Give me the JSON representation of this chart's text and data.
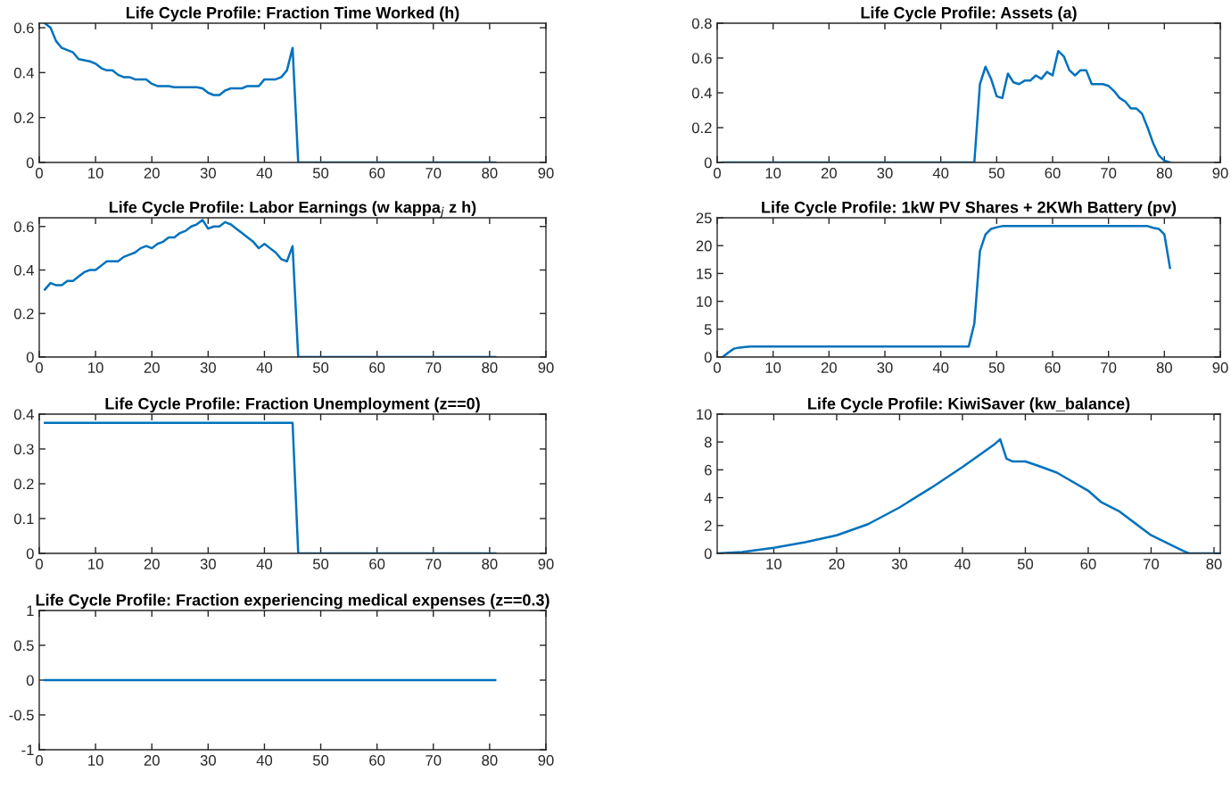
{
  "chart_data": [
    {
      "type": "line",
      "title": "Life Cycle Profile: Fraction Time Worked (h)",
      "x": [
        1,
        2,
        3,
        4,
        5,
        6,
        7,
        8,
        9,
        10,
        11,
        12,
        13,
        14,
        15,
        16,
        17,
        18,
        19,
        20,
        21,
        22,
        23,
        24,
        25,
        26,
        27,
        28,
        29,
        30,
        31,
        32,
        33,
        34,
        35,
        36,
        37,
        38,
        39,
        40,
        41,
        42,
        43,
        44,
        45,
        46,
        81
      ],
      "series": [
        {
          "color": "#0072bd",
          "values": [
            0.62,
            0.6,
            0.54,
            0.51,
            0.5,
            0.49,
            0.46,
            0.455,
            0.45,
            0.44,
            0.42,
            0.41,
            0.41,
            0.39,
            0.38,
            0.38,
            0.37,
            0.37,
            0.37,
            0.35,
            0.34,
            0.34,
            0.34,
            0.335,
            0.335,
            0.335,
            0.335,
            0.335,
            0.33,
            0.31,
            0.3,
            0.3,
            0.32,
            0.33,
            0.33,
            0.33,
            0.34,
            0.34,
            0.34,
            0.37,
            0.37,
            0.37,
            0.38,
            0.41,
            0.51,
            0,
            0
          ]
        }
      ],
      "xlim": [
        0,
        90
      ],
      "xticks": [
        0,
        10,
        20,
        30,
        40,
        50,
        60,
        70,
        80,
        90
      ],
      "ylim": [
        0,
        0.62
      ],
      "yticks": [
        0,
        0.2,
        0.4,
        0.6
      ],
      "grid": false
    },
    {
      "type": "line",
      "title": "Life Cycle Profile: Assets (a)",
      "x": [
        1,
        46,
        47,
        48,
        49,
        50,
        51,
        52,
        53,
        54,
        55,
        56,
        57,
        58,
        59,
        60,
        61,
        62,
        63,
        64,
        65,
        66,
        67,
        68,
        69,
        70,
        71,
        72,
        73,
        74,
        75,
        76,
        77,
        78,
        79,
        80,
        81
      ],
      "series": [
        {
          "color": "#0072bd",
          "values": [
            0,
            0,
            0.45,
            0.55,
            0.48,
            0.38,
            0.37,
            0.51,
            0.46,
            0.45,
            0.47,
            0.47,
            0.5,
            0.48,
            0.52,
            0.5,
            0.64,
            0.61,
            0.53,
            0.5,
            0.53,
            0.53,
            0.45,
            0.45,
            0.45,
            0.44,
            0.41,
            0.37,
            0.35,
            0.31,
            0.31,
            0.28,
            0.2,
            0.11,
            0.04,
            0.01,
            0
          ]
        }
      ],
      "xlim": [
        0,
        90
      ],
      "xticks": [
        0,
        10,
        20,
        30,
        40,
        50,
        60,
        70,
        80,
        90
      ],
      "ylim": [
        0,
        0.8
      ],
      "yticks": [
        0,
        0.2,
        0.4,
        0.6,
        0.8
      ],
      "grid": false
    },
    {
      "type": "line",
      "title": "Life Cycle Profile: Labor Earnings (w kappa$_{j}$ z h)",
      "x": [
        1,
        2,
        3,
        4,
        5,
        6,
        7,
        8,
        9,
        10,
        11,
        12,
        13,
        14,
        15,
        16,
        17,
        18,
        19,
        20,
        21,
        22,
        23,
        24,
        25,
        26,
        27,
        28,
        29,
        30,
        31,
        32,
        33,
        34,
        35,
        36,
        37,
        38,
        39,
        40,
        41,
        42,
        43,
        44,
        45,
        46,
        81
      ],
      "series": [
        {
          "color": "#0072bd",
          "values": [
            0.31,
            0.34,
            0.33,
            0.33,
            0.35,
            0.35,
            0.37,
            0.39,
            0.4,
            0.4,
            0.42,
            0.44,
            0.44,
            0.44,
            0.46,
            0.47,
            0.48,
            0.5,
            0.51,
            0.5,
            0.52,
            0.53,
            0.55,
            0.55,
            0.57,
            0.58,
            0.6,
            0.61,
            0.63,
            0.59,
            0.6,
            0.6,
            0.62,
            0.61,
            0.59,
            0.57,
            0.55,
            0.53,
            0.5,
            0.52,
            0.5,
            0.48,
            0.45,
            0.44,
            0.51,
            0,
            0
          ]
        }
      ],
      "xlim": [
        0,
        90
      ],
      "xticks": [
        0,
        10,
        20,
        30,
        40,
        50,
        60,
        70,
        80,
        90
      ],
      "ylim": [
        0,
        0.64
      ],
      "yticks": [
        0,
        0.2,
        0.4,
        0.6
      ],
      "grid": false
    },
    {
      "type": "line",
      "title": "Life Cycle Profile: 1kW PV Shares + 2KWh Battery (pv)",
      "x": [
        1,
        2,
        3,
        4,
        5,
        6,
        45,
        46,
        47,
        48,
        49,
        50,
        51,
        77,
        78,
        79,
        80,
        81
      ],
      "series": [
        {
          "color": "#0072bd",
          "values": [
            0,
            0.8,
            1.5,
            1.7,
            1.8,
            1.9,
            1.9,
            6,
            19,
            22,
            23,
            23.3,
            23.5,
            23.5,
            23.2,
            23,
            22,
            16
          ]
        }
      ],
      "xlim": [
        0,
        90
      ],
      "xticks": [
        0,
        10,
        20,
        30,
        40,
        50,
        60,
        70,
        80,
        90
      ],
      "ylim": [
        0,
        25
      ],
      "yticks": [
        0,
        5,
        10,
        15,
        20,
        25
      ],
      "grid": false
    },
    {
      "type": "line",
      "title": "Life Cycle Profile: Fraction Unemployment (z==0)",
      "x": [
        1,
        45,
        46,
        81
      ],
      "series": [
        {
          "color": "#0072bd",
          "values": [
            0.375,
            0.375,
            0,
            0
          ]
        }
      ],
      "xlim": [
        0,
        90
      ],
      "xticks": [
        0,
        10,
        20,
        30,
        40,
        50,
        60,
        70,
        80,
        90
      ],
      "ylim": [
        0,
        0.4
      ],
      "yticks": [
        0,
        0.1,
        0.2,
        0.3,
        0.4
      ],
      "grid": false
    },
    {
      "type": "line",
      "title": "Life Cycle Profile: KiwiSaver (kw_balance)",
      "x": [
        1,
        5,
        10,
        15,
        20,
        25,
        30,
        35,
        40,
        45,
        46,
        47,
        48,
        50,
        52,
        55,
        60,
        62,
        65,
        70,
        75,
        76,
        81
      ],
      "series": [
        {
          "color": "#0072bd",
          "values": [
            0,
            0.1,
            0.4,
            0.8,
            1.3,
            2.1,
            3.3,
            4.7,
            6.2,
            7.8,
            8.2,
            6.8,
            6.6,
            6.6,
            6.3,
            5.8,
            4.5,
            3.7,
            3.0,
            1.3,
            0.2,
            0,
            0
          ]
        }
      ],
      "xlim": [
        1,
        81
      ],
      "xticks": [
        10,
        20,
        30,
        40,
        50,
        60,
        70,
        80
      ],
      "ylim": [
        0,
        10
      ],
      "yticks": [
        0,
        2,
        4,
        6,
        8,
        10
      ],
      "grid": false
    },
    {
      "type": "line",
      "title": "Life Cycle Profile: Fraction experiencing medical expenses (z==0.3)",
      "x": [
        1,
        81
      ],
      "series": [
        {
          "color": "#0072bd",
          "values": [
            0,
            0
          ]
        }
      ],
      "xlim": [
        0,
        90
      ],
      "xticks": [
        0,
        10,
        20,
        30,
        40,
        50,
        60,
        70,
        80,
        90
      ],
      "ylim": [
        -1,
        1
      ],
      "yticks": [
        -1,
        -0.5,
        0,
        0.5,
        1
      ],
      "grid": false
    }
  ]
}
